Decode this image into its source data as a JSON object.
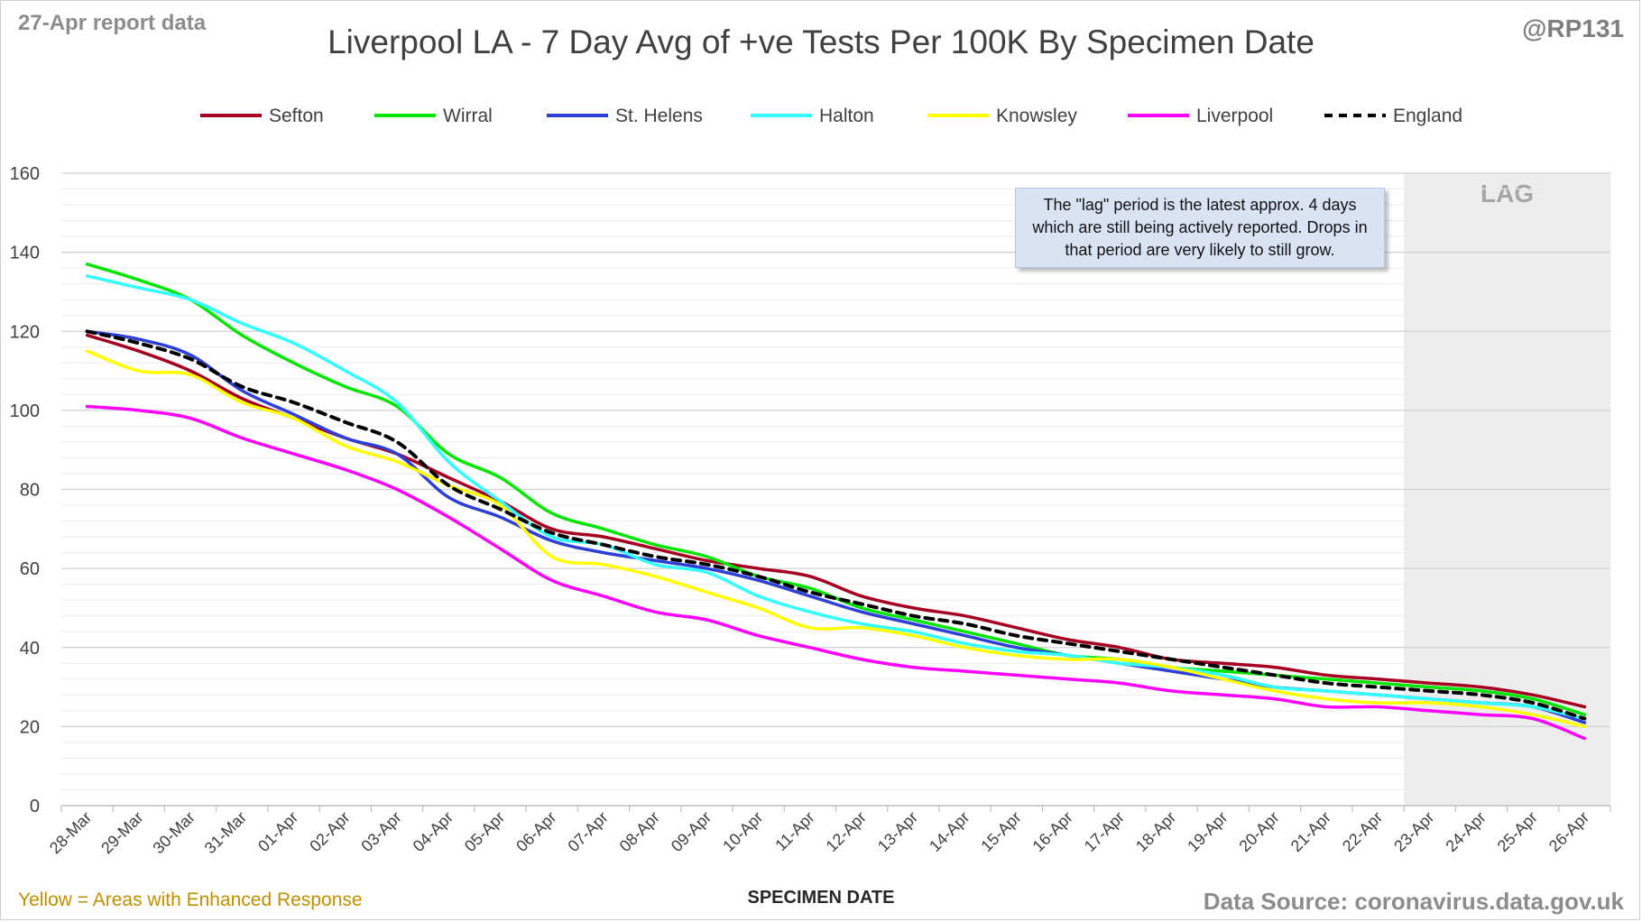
{
  "header": {
    "report_date": "27-Apr report data",
    "handle": "@RP131",
    "title": "Liverpool LA - 7 Day Avg of +ve Tests Per 100K By Specimen Date"
  },
  "footer": {
    "enhanced_note": "Yellow = Areas with Enhanced Response",
    "x_axis_title": "SPECIMEN DATE",
    "source": "Data Source: coronavirus.data.gov.uk"
  },
  "annotation": {
    "lag_label": "LAG",
    "note": "The \"lag\" period is the latest approx. 4 days which are still being actively reported. Drops in that period are very likely to still grow."
  },
  "chart_data": {
    "type": "line",
    "title": "Liverpool LA - 7 Day Avg of +ve Tests Per 100K By Specimen Date",
    "xlabel": "SPECIMEN DATE",
    "ylabel": "",
    "ylim": [
      0,
      160
    ],
    "y_ticks": [
      0,
      20,
      40,
      60,
      80,
      100,
      120,
      140,
      160
    ],
    "grid": true,
    "legend_position": "top",
    "lag_categories": [
      "23-Apr",
      "24-Apr",
      "25-Apr",
      "26-Apr"
    ],
    "categories": [
      "28-Mar",
      "29-Mar",
      "30-Mar",
      "31-Mar",
      "01-Apr",
      "02-Apr",
      "03-Apr",
      "04-Apr",
      "05-Apr",
      "06-Apr",
      "07-Apr",
      "08-Apr",
      "09-Apr",
      "10-Apr",
      "11-Apr",
      "12-Apr",
      "13-Apr",
      "14-Apr",
      "15-Apr",
      "16-Apr",
      "17-Apr",
      "18-Apr",
      "19-Apr",
      "20-Apr",
      "21-Apr",
      "22-Apr",
      "23-Apr",
      "24-Apr",
      "25-Apr",
      "26-Apr"
    ],
    "series": [
      {
        "name": "Sefton",
        "color": "#a50021",
        "dash": false,
        "values": [
          119,
          115,
          110,
          103,
          98,
          93,
          89,
          83,
          77,
          70,
          68,
          65,
          62,
          60,
          58,
          53,
          50,
          48,
          45,
          42,
          40,
          37,
          36,
          35,
          33,
          32,
          31,
          30,
          28,
          25
        ]
      },
      {
        "name": "Wirral",
        "color": "#00e600",
        "dash": false,
        "values": [
          137,
          133,
          128,
          119,
          112,
          106,
          101,
          89,
          83,
          74,
          70,
          66,
          63,
          58,
          55,
          50,
          47,
          44,
          41,
          38,
          37,
          35,
          34,
          33,
          32,
          31,
          30,
          29,
          27,
          23
        ]
      },
      {
        "name": "St. Helens",
        "color": "#2e3fd6",
        "dash": false,
        "values": [
          120,
          118,
          114,
          105,
          99,
          93,
          89,
          78,
          73,
          67,
          64,
          62,
          60,
          57,
          53,
          49,
          46,
          43,
          40,
          38,
          36,
          34,
          32,
          30,
          29,
          28,
          27,
          26,
          25,
          21
        ]
      },
      {
        "name": "Halton",
        "color": "#33ffff",
        "dash": false,
        "values": [
          134,
          131,
          128,
          122,
          117,
          110,
          102,
          87,
          77,
          68,
          66,
          61,
          59,
          53,
          49,
          46,
          44,
          41,
          39,
          38,
          36,
          35,
          33,
          30,
          29,
          28,
          27,
          26,
          25,
          22
        ]
      },
      {
        "name": "Knowsley",
        "color": "#ffff00",
        "dash": false,
        "values": [
          115,
          110,
          109,
          102,
          98,
          91,
          87,
          81,
          76,
          63,
          61,
          58,
          54,
          50,
          45,
          45,
          43,
          40,
          38,
          37,
          37,
          35,
          32,
          29,
          27,
          26,
          26,
          25,
          23,
          20
        ]
      },
      {
        "name": "Liverpool",
        "color": "#ff00ff",
        "dash": false,
        "values": [
          101,
          100,
          98,
          93,
          89,
          85,
          80,
          73,
          65,
          57,
          53,
          49,
          47,
          43,
          40,
          37,
          35,
          34,
          33,
          32,
          31,
          29,
          28,
          27,
          25,
          25,
          24,
          23,
          22,
          17
        ]
      },
      {
        "name": "England",
        "color": "#000000",
        "dash": true,
        "values": [
          120,
          117,
          113,
          106,
          102,
          97,
          92,
          81,
          75,
          69,
          66,
          63,
          61,
          58,
          54,
          51,
          48,
          46,
          43,
          41,
          39,
          37,
          35,
          33,
          31,
          30,
          29,
          28,
          26,
          22
        ]
      }
    ]
  }
}
